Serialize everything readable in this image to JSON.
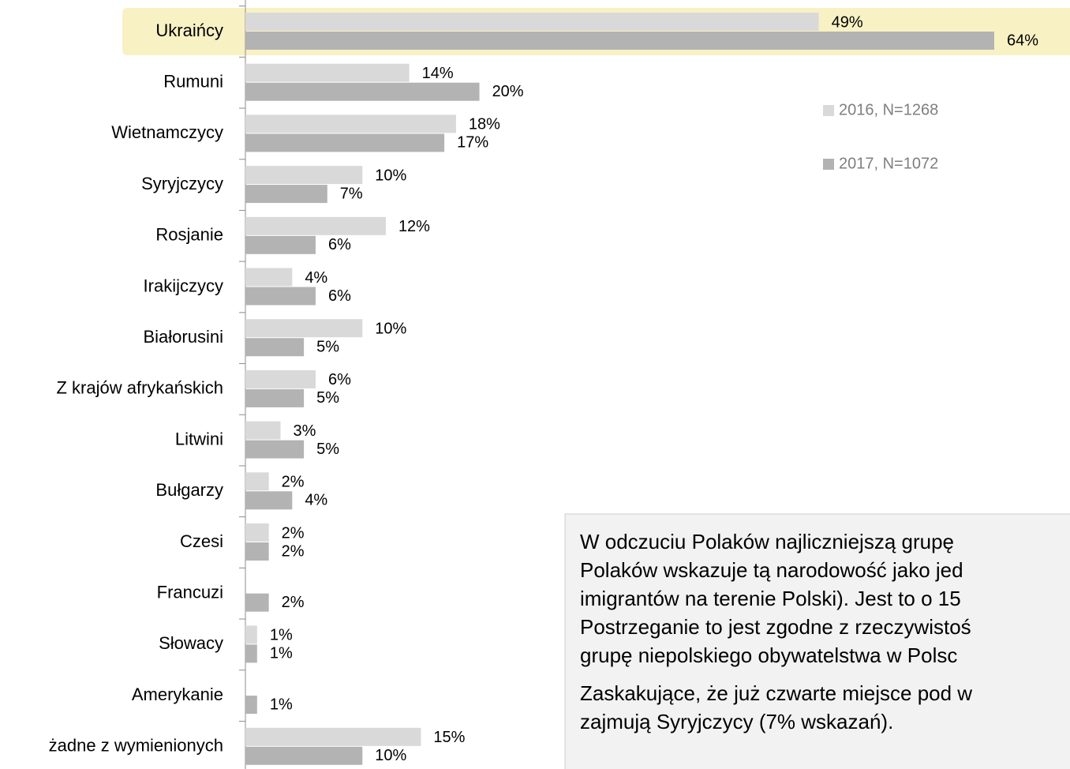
{
  "chart_data": {
    "type": "bar",
    "orientation": "horizontal",
    "categories": [
      "Ukraińcy",
      "Rumuni",
      "Wietnamczycy",
      "Syryjczycy",
      "Rosjanie",
      "Irakijczycy",
      "Białorusini",
      "Z krajów afrykańskich",
      "Litwini",
      "Bułgarzy",
      "Czesi",
      "Francuzi",
      "Słowacy",
      "Amerykanie",
      "żadne z wymienionych"
    ],
    "series": [
      {
        "name": "2016, N=1268",
        "color": "#d9d9d9",
        "values": [
          49,
          14,
          18,
          10,
          12,
          4,
          10,
          6,
          3,
          2,
          2,
          null,
          1,
          null,
          15
        ],
        "value_labels": [
          "49%",
          "14%",
          "18%",
          "10%",
          "12%",
          "4%",
          "10%",
          "6%",
          "3%",
          "2%",
          "2%",
          null,
          "1%",
          null,
          "15%"
        ]
      },
      {
        "name": "2017, N=1072",
        "color": "#b3b3b3",
        "values": [
          64,
          20,
          17,
          7,
          6,
          6,
          5,
          5,
          5,
          4,
          2,
          2,
          1,
          1,
          10
        ],
        "value_labels": [
          "64%",
          "20%",
          "17%",
          "7%",
          "6%",
          "6%",
          "5%",
          "5%",
          "5%",
          "4%",
          "2%",
          "2%",
          "1%",
          "1%",
          "10%"
        ]
      }
    ]
  },
  "text_box": {
    "paragraphs": [
      [
        "W odczuciu Polaków najliczniejszą grupę ",
        "Polaków wskazuje tą narodowość jako jed",
        "imigrantów na terenie Polski). Jest to o 15",
        "Postrzeganie to jest zgodne z rzeczywistoś",
        "grupę niepolskiego obywatelstwa w Polsc"
      ],
      [
        "Zaskakujące, że już czwarte miejsce pod w",
        "zajmują Syryjczycy (7% wskazań)."
      ]
    ]
  }
}
